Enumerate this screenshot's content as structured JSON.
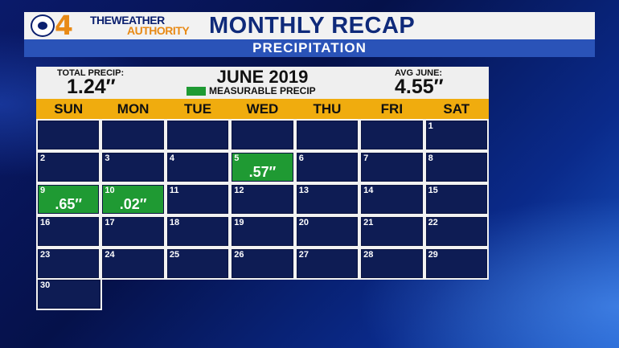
{
  "header": {
    "logo_number": "4",
    "logo_line1": "THEWEATHER",
    "logo_line2": "AUTHORITY",
    "title": "MONTHLY RECAP",
    "subtitle": "PRECIPITATION"
  },
  "stats": {
    "total_label": "TOTAL PRECIP:",
    "total_value": "1.24″",
    "month_title": "JUNE 2019",
    "legend_label": "MEASURABLE PRECIP",
    "avg_label": "AVG JUNE:",
    "avg_value": "4.55″"
  },
  "colors": {
    "precip_day": "#1f9a33",
    "no_precip_day": "#0e1c54",
    "weekday_bar": "#f0ac0e",
    "subtitle_bar": "#2a53b8"
  },
  "weekdays": [
    "SUN",
    "MON",
    "TUE",
    "WED",
    "THU",
    "FRI",
    "SAT"
  ],
  "calendar": {
    "first_weekday": 6,
    "days_in_month": 30,
    "precip_days": [
      {
        "day": 5,
        "amount": ".57″"
      },
      {
        "day": 9,
        "amount": ".65″"
      },
      {
        "day": 10,
        "amount": ".02″"
      }
    ]
  }
}
